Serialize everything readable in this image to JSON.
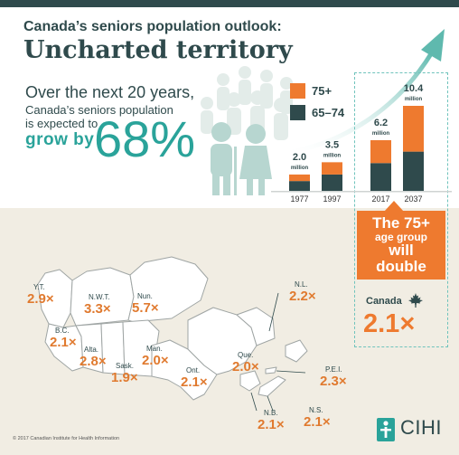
{
  "header": {
    "subtitle": "Canada’s seniors population outlook:",
    "title": "Uncharted territory"
  },
  "lead": {
    "line1": "Over the next 20 years,",
    "line2": "Canada’s seniors population",
    "line3": "is expected to",
    "grow_label": "grow by",
    "growth_percent": "68%"
  },
  "colors": {
    "orange": "#ee7a2f",
    "dark_teal": "#2f4a4c",
    "teal": "#2aa39a"
  },
  "chart_data": {
    "type": "bar",
    "stacked": true,
    "categories": [
      "1977",
      "1997",
      "2017",
      "2037"
    ],
    "series": [
      {
        "name": "65–74",
        "values": [
          1.2,
          2.0,
          3.4,
          4.8
        ]
      },
      {
        "name": "75+",
        "values": [
          0.8,
          1.5,
          2.8,
          5.6
        ]
      }
    ],
    "total_labels": [
      {
        "value": "2.0",
        "unit": "million"
      },
      {
        "value": "3.5",
        "unit": "million"
      },
      {
        "value": "6.2",
        "unit": "million"
      },
      {
        "value": "10.4",
        "unit": "million"
      }
    ],
    "ylim": [
      0,
      10.4
    ],
    "legend": "top-left"
  },
  "callout": {
    "line1": "The 75+",
    "line2": "age group",
    "line3": "will",
    "line4": "double"
  },
  "canada": {
    "label": "Canada",
    "value": "2.1×"
  },
  "provinces": [
    {
      "name": "Y.T.",
      "value": "2.9×"
    },
    {
      "name": "N.W.T.",
      "value": "3.3×"
    },
    {
      "name": "Nun.",
      "value": "5.7×"
    },
    {
      "name": "B.C.",
      "value": "2.1×"
    },
    {
      "name": "Alta.",
      "value": "2.8×"
    },
    {
      "name": "Sask.",
      "value": "1.9×"
    },
    {
      "name": "Man.",
      "value": "2.0×"
    },
    {
      "name": "Ont.",
      "value": "2.1×"
    },
    {
      "name": "Que.",
      "value": "2.0×"
    },
    {
      "name": "N.L.",
      "value": "2.2×"
    },
    {
      "name": "P.E.I.",
      "value": "2.3×"
    },
    {
      "name": "N.B.",
      "value": "2.1×"
    },
    {
      "name": "N.S.",
      "value": "2.1×"
    }
  ],
  "footer": {
    "copyright": "© 2017 Canadian Institute for Health Information",
    "logo_text": "CIHI"
  }
}
